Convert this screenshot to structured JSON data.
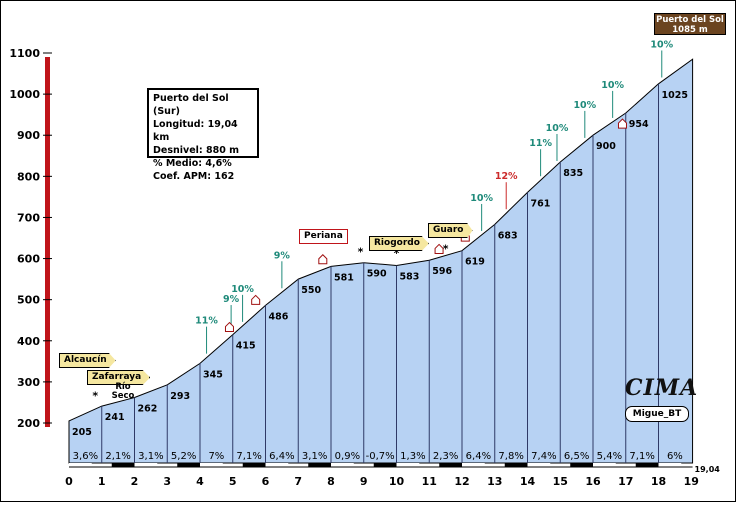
{
  "colors": {
    "fill": "#b7d2f3",
    "segment_line": "#2f3a66",
    "grade_label": "#1f8a7a",
    "grade_label_steep": "#cc2a2a",
    "summit_box": "#6b4420",
    "info_border": "#000000",
    "axis_bar_red": "#c0141a",
    "label_box": "#f5e7a0"
  },
  "summit": {
    "name": "Puerto del Sol",
    "elevation": "1085 m"
  },
  "info_box": {
    "name": "Puerto del Sol (Sur)",
    "length": "Longitud: 19,04 km",
    "gain": "Desnivel: 880 m",
    "avg": "% Medio: 4,6%",
    "coef": "Coef. APM: 162"
  },
  "places": [
    {
      "label": "Alcaucín"
    },
    {
      "label": "Zafarraya"
    },
    {
      "label": "Río Seco"
    },
    {
      "label": "Periana"
    },
    {
      "label": "Riogordo"
    },
    {
      "label": "Guaro"
    }
  ],
  "logo": {
    "text": "CIMA",
    "author": "Migue_BT"
  },
  "chart_data": {
    "type": "area",
    "title": "Puerto del Sol (Sur)",
    "xlabel": "",
    "ylabel": "",
    "xlim": [
      0,
      19.04
    ],
    "ylim": [
      200,
      1100
    ],
    "x_ticks": [
      "0",
      "1",
      "2",
      "3",
      "4",
      "5",
      "6",
      "7",
      "8",
      "9",
      "10",
      "11",
      "12",
      "13",
      "14",
      "15",
      "16",
      "17",
      "18",
      "19"
    ],
    "y_ticks": [
      "200",
      "300",
      "400",
      "500",
      "600",
      "700",
      "800",
      "900",
      "1000",
      "1100"
    ],
    "end_label": "19,04",
    "profile": [
      {
        "x": 0,
        "y": 205
      },
      {
        "x": 1,
        "y": 241
      },
      {
        "x": 2,
        "y": 262
      },
      {
        "x": 3,
        "y": 293
      },
      {
        "x": 4,
        "y": 345
      },
      {
        "x": 5,
        "y": 415
      },
      {
        "x": 6,
        "y": 486
      },
      {
        "x": 7,
        "y": 550
      },
      {
        "x": 8,
        "y": 581
      },
      {
        "x": 9,
        "y": 590
      },
      {
        "x": 10,
        "y": 583
      },
      {
        "x": 11,
        "y": 596
      },
      {
        "x": 12,
        "y": 619
      },
      {
        "x": 13,
        "y": 683
      },
      {
        "x": 14,
        "y": 761
      },
      {
        "x": 15,
        "y": 835
      },
      {
        "x": 16,
        "y": 900
      },
      {
        "x": 17,
        "y": 954
      },
      {
        "x": 18,
        "y": 1025
      },
      {
        "x": 19.04,
        "y": 1085
      }
    ],
    "elevation_labels": [
      "205",
      "241",
      "262",
      "293",
      "345",
      "415",
      "486",
      "550",
      "581",
      "590",
      "583",
      "596",
      "619",
      "683",
      "761",
      "835",
      "900",
      "954",
      "1025"
    ],
    "segment_grades": [
      "3,6%",
      "2,1%",
      "3,1%",
      "5,2%",
      "7%",
      "7,1%",
      "6,4%",
      "3,1%",
      "0,9%",
      "-0,7%",
      "1,3%",
      "2,3%",
      "6,4%",
      "7,8%",
      "7,4%",
      "6,5%",
      "5,4%",
      "7,1%",
      "6%"
    ],
    "max_grade_labels": [
      {
        "x": 4.2,
        "text": "11%"
      },
      {
        "x": 4.95,
        "text": "9%"
      },
      {
        "x": 5.3,
        "text": "10%"
      },
      {
        "x": 6.5,
        "text": "9%"
      },
      {
        "x": 12.6,
        "text": "10%"
      },
      {
        "x": 13.35,
        "text": "12%"
      },
      {
        "x": 14.4,
        "text": "11%"
      },
      {
        "x": 14.9,
        "text": "10%"
      },
      {
        "x": 15.75,
        "text": "10%"
      },
      {
        "x": 16.6,
        "text": "10%"
      },
      {
        "x": 18.1,
        "text": "10%"
      }
    ],
    "grid": false,
    "legend": "none"
  }
}
